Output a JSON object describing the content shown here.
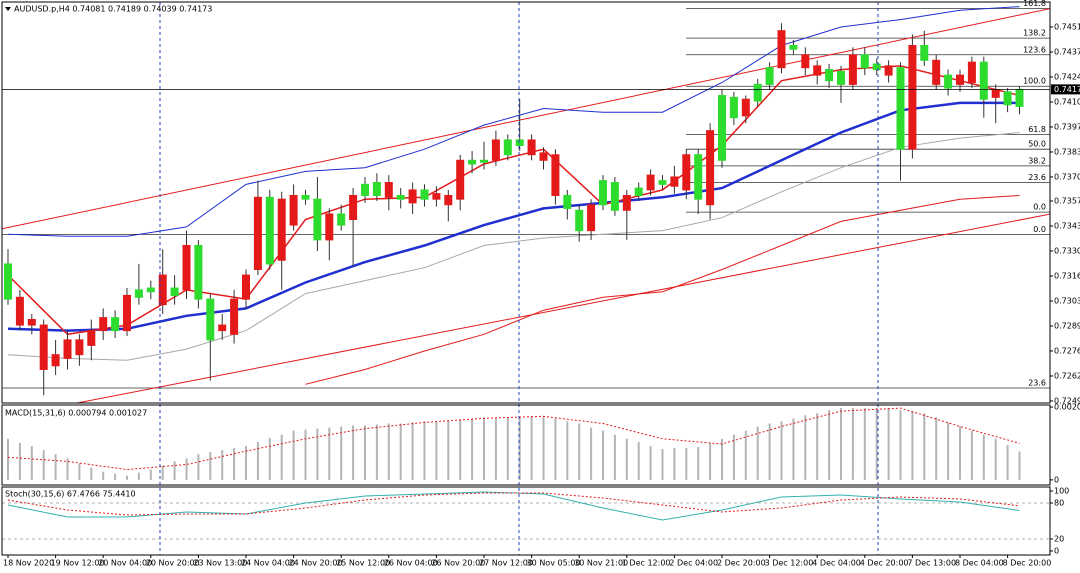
{
  "chart_data": [
    {
      "type": "candlestick",
      "title": "AUDUSD.p,H4  0.74081 0.74189 0.74039 0.74173",
      "categories": [
        "18 Nov 2020",
        null,
        null,
        null,
        "19 Nov 12:00",
        null,
        null,
        null,
        "20 Nov 04:00",
        null,
        null,
        null,
        "20 Nov 20:00",
        null,
        null,
        null,
        "23 Nov 13:00",
        null,
        null,
        null,
        "24 Nov 04:00",
        null,
        null,
        null,
        "24 Nov 20:00",
        null,
        null,
        null,
        "25 Nov 12:00",
        null,
        null,
        null,
        "26 Nov 04:00",
        null,
        null,
        null,
        "26 Nov 20:00",
        null,
        null,
        null,
        "27 Nov 12:00",
        null,
        null,
        null,
        "30 Nov 05:00",
        null,
        null,
        null,
        "30 Nov 21:00",
        null,
        null,
        null,
        "1 Dec 12:00",
        null,
        null,
        null,
        "2 Dec 04:00",
        null,
        null,
        null,
        "2 Dec 20:00",
        null,
        null,
        null,
        "3 Dec 12:00",
        null,
        null,
        null,
        "4 Dec 04:00",
        null,
        null,
        null,
        "4 Dec 20:00",
        null,
        null,
        null,
        "7 Dec 13:00",
        null,
        null,
        null,
        "8 Dec 04:00",
        null,
        null,
        null,
        "8 Dec 20:00",
        null
      ],
      "open": [
        0.7304,
        0.7305,
        0.7293,
        0.729,
        0.7274,
        0.7282,
        0.7282,
        0.7287,
        0.7294,
        0.7287,
        0.7306,
        0.7305,
        0.7308,
        0.7317,
        0.7306,
        0.7333,
        0.7304,
        0.7282,
        0.729,
        0.7304,
        0.7317,
        0.7359,
        0.7323,
        0.7358,
        0.736,
        0.7358,
        0.7336,
        0.735,
        0.7344,
        0.736,
        0.736,
        0.736,
        0.7367,
        0.7358,
        0.7363,
        0.7358,
        0.7361,
        0.736,
        0.7379,
        0.7377,
        0.7378,
        0.739,
        0.7382,
        0.7387,
        0.739,
        0.7383,
        0.7382,
        0.7353,
        0.7341,
        0.7355,
        0.7355,
        0.7352,
        0.736,
        0.736,
        0.7371,
        0.7366,
        0.737,
        0.7382,
        0.7358,
        0.7395,
        0.7379,
        0.7402,
        0.7412,
        0.7411,
        0.742,
        0.7449,
        0.7439,
        0.7436,
        0.743,
        0.7422,
        0.742,
        0.7436,
        0.7429,
        0.7428,
        0.743,
        0.7385,
        0.7441,
        0.7433,
        0.7433,
        0.7418,
        0.7425,
        0.7432,
        0.7412,
        0.7417,
        0.7409,
        0.74081
      ],
      "high": [
        0.7331,
        0.7309,
        0.7296,
        0.7293,
        0.7282,
        0.7287,
        0.7285,
        0.7293,
        0.7299,
        0.7298,
        0.731,
        0.7323,
        0.7314,
        0.7331,
        0.7317,
        0.7341,
        0.7336,
        0.7307,
        0.7296,
        0.7309,
        0.732,
        0.7368,
        0.7363,
        0.7362,
        0.7366,
        0.7363,
        0.737,
        0.7353,
        0.7355,
        0.7364,
        0.737,
        0.7372,
        0.7371,
        0.7364,
        0.7367,
        0.7366,
        0.7365,
        0.7363,
        0.7382,
        0.7384,
        0.7389,
        0.7395,
        0.7393,
        0.7412,
        0.7393,
        0.7386,
        0.7385,
        0.7363,
        0.7355,
        0.7358,
        0.7371,
        0.737,
        0.7363,
        0.7367,
        0.7374,
        0.7371,
        0.7376,
        0.7385,
        0.7385,
        0.7399,
        0.7417,
        0.7416,
        0.7414,
        0.7423,
        0.7432,
        0.7453,
        0.7444,
        0.744,
        0.7433,
        0.7431,
        0.743,
        0.744,
        0.744,
        0.7434,
        0.7433,
        0.7432,
        0.7447,
        0.7449,
        0.7436,
        0.7428,
        0.7428,
        0.7435,
        0.7435,
        0.742,
        0.7418,
        0.74189
      ],
      "low": [
        0.7301,
        0.7287,
        0.7285,
        0.7252,
        0.7263,
        0.7266,
        0.7268,
        0.7271,
        0.7282,
        0.7283,
        0.7284,
        0.7301,
        0.7304,
        0.7296,
        0.7301,
        0.7304,
        0.7299,
        0.726,
        0.7282,
        0.728,
        0.7299,
        0.7317,
        0.732,
        0.7309,
        0.7341,
        0.7355,
        0.733,
        0.7325,
        0.7341,
        0.7322,
        0.7356,
        0.7357,
        0.7352,
        0.7353,
        0.735,
        0.7354,
        0.7354,
        0.7346,
        0.7352,
        0.7372,
        0.7374,
        0.7376,
        0.7379,
        0.7384,
        0.7379,
        0.7374,
        0.7355,
        0.7347,
        0.7335,
        0.7336,
        0.7352,
        0.7349,
        0.7336,
        0.7357,
        0.736,
        0.7363,
        0.7361,
        0.7358,
        0.735,
        0.7347,
        0.7375,
        0.7398,
        0.7399,
        0.7408,
        0.7417,
        0.7426,
        0.7436,
        0.7425,
        0.742,
        0.7418,
        0.741,
        0.7417,
        0.7425,
        0.7425,
        0.7421,
        0.7368,
        0.738,
        0.743,
        0.7417,
        0.7414,
        0.7416,
        0.7418,
        0.7402,
        0.7399,
        0.7405,
        0.74039
      ],
      "close": [
        0.7323,
        0.729,
        0.729,
        0.7266,
        0.7268,
        0.7272,
        0.7274,
        0.7279,
        0.7287,
        0.7294,
        0.7287,
        0.7309,
        0.731,
        0.7301,
        0.731,
        0.7309,
        0.7333,
        0.7304,
        0.7287,
        0.7285,
        0.7304,
        0.732,
        0.7359,
        0.7325,
        0.7344,
        0.736,
        0.7358,
        0.7336,
        0.735,
        0.7347,
        0.7366,
        0.7367,
        0.7359,
        0.736,
        0.7356,
        0.7363,
        0.7358,
        0.7355,
        0.7358,
        0.7379,
        0.7379,
        0.7379,
        0.739,
        0.739,
        0.7382,
        0.7379,
        0.736,
        0.736,
        0.7352,
        0.7341,
        0.7368,
        0.7367,
        0.7352,
        0.7364,
        0.7363,
        0.7368,
        0.7365,
        0.7363,
        0.7382,
        0.7355,
        0.7414,
        0.7413,
        0.7403,
        0.742,
        0.7429,
        0.7429,
        0.7441,
        0.7429,
        0.7425,
        0.7428,
        0.7427,
        0.742,
        0.7436,
        0.7431,
        0.7425,
        0.7429,
        0.7385,
        0.7441,
        0.742,
        0.7425,
        0.742,
        0.7421,
        0.7432,
        0.7413,
        0.7416,
        0.74173
      ],
      "up_color": "#2ddc2d",
      "down_color": "#e41a1a",
      "ylim": [
        0.72479,
        0.74645
      ],
      "yticks": [
        {
          "value": 0.7451,
          "label": "0.74510"
        },
        0.74375,
        {
          "value": 0.7424,
          "label": "0.74240"
        },
        0.74105,
        {
          "value": 0.7397,
          "label": "0.73970"
        },
        0.73835,
        {
          "value": 0.737,
          "label": "0.73700"
        },
        {
          "value": 0.7357,
          "label": "0.73570"
        },
        0.73435,
        {
          "value": 0.733,
          "label": "0.73300"
        },
        0.73165,
        {
          "value": 0.7303,
          "label": "0.73030"
        },
        0.72895,
        {
          "value": 0.7276,
          "label": "0.72760"
        },
        0.72625,
        {
          "value": 0.7249,
          "label": "0.72490"
        }
      ],
      "last_price": {
        "value": 0.74173,
        "label": "0.74173"
      },
      "lines_x": [
        0,
        5,
        10,
        15,
        20,
        25,
        30,
        35,
        40,
        45,
        50,
        55,
        60,
        65,
        70,
        75,
        80,
        85
      ],
      "lines": [
        {
          "color": "#a8a8a8",
          "width": 1,
          "values": [
            0.7274,
            0.7272,
            0.7271,
            0.7277,
            0.7287,
            0.7307,
            0.7314,
            0.7321,
            0.7333,
            0.7337,
            0.7339,
            0.7341,
            0.7348,
            0.7362,
            0.7375,
            0.7386,
            0.7391,
            0.7394
          ]
        },
        {
          "color": "#1f2fd0",
          "width": 1,
          "values": [
            0.7339,
            0.7338,
            0.7338,
            0.7343,
            0.7366,
            0.7373,
            0.7375,
            0.7385,
            0.7398,
            0.7407,
            0.7405,
            0.7405,
            0.7421,
            0.7441,
            0.7451,
            0.7455,
            0.746,
            0.7462
          ]
        },
        {
          "color": "#e41a1a",
          "width": 1,
          "values": [
            null,
            null,
            null,
            null,
            null,
            0.7258,
            0.7266,
            0.7276,
            0.7285,
            0.7298,
            0.7305,
            0.7308,
            0.732,
            0.7333,
            0.7346,
            0.7352,
            0.7358,
            0.736
          ]
        },
        {
          "color": "#1f2fd0",
          "width": 2.5,
          "values": [
            0.7288,
            0.7287,
            0.7288,
            0.7295,
            0.7299,
            0.7313,
            0.7324,
            0.7333,
            0.7344,
            0.7353,
            0.7356,
            0.7359,
            0.7364,
            0.7379,
            0.7394,
            0.7406,
            0.741,
            0.741
          ]
        },
        {
          "color": "#e41a1a",
          "width": 1.5,
          "values": [
            0.7317,
            0.7285,
            0.729,
            0.7309,
            0.7304,
            0.7347,
            0.7358,
            0.7359,
            0.7377,
            0.7385,
            0.7355,
            0.7363,
            0.7387,
            0.7422,
            0.7428,
            0.743,
            0.7422,
            0.7414
          ]
        }
      ],
      "trendlines": [
        {
          "color": "#e41a1a",
          "x": [
            -0.5,
            87.6
          ],
          "values": [
            0.7342,
            0.7461
          ]
        },
        {
          "color": "#e41a1a",
          "x": [
            -0.5,
            87.6
          ],
          "values": [
            0.724,
            0.735
          ]
        }
      ],
      "fib_levels": [
        {
          "label": "161.8",
          "value": 0.7461,
          "span": "partial"
        },
        {
          "label": "138.2",
          "value": 0.7445,
          "span": "partial"
        },
        {
          "label": "123.6",
          "value": 0.7436,
          "span": "partial"
        },
        {
          "label": "100.0",
          "value": 0.7419,
          "span": "partial"
        },
        {
          "label": "61.8",
          "value": 0.7393,
          "span": "partial"
        },
        {
          "label": "50.0",
          "value": 0.7385,
          "span": "partial"
        },
        {
          "label": "38.2",
          "value": 0.7376,
          "span": "partial"
        },
        {
          "label": "23.6",
          "value": 0.7367,
          "span": "partial"
        },
        {
          "label": "0.0",
          "value": 0.7351,
          "span": "partial"
        },
        {
          "label": "0.0",
          "value": 0.7339,
          "span": "full"
        },
        {
          "label": "23.6",
          "value": 0.7256,
          "span": "full"
        }
      ]
    },
    {
      "type": "macd",
      "title": "MACD(15,31,6) 0.000794 0.001027",
      "histogram": [
        0.001151,
        0.001036,
        0.000949,
        0.000834,
        0.000719,
        0.000604,
        0.00046,
        0.000345,
        0.00023,
        0.000173,
        0.000115,
        0.000201,
        0.000288,
        0.000403,
        0.000518,
        0.000604,
        0.000719,
        0.000777,
        0.000834,
        0.000892,
        0.000949,
        0.001064,
        0.00118,
        0.001266,
        0.001381,
        0.00141,
        0.001439,
        0.001467,
        0.001496,
        0.001525,
        0.001525,
        0.001554,
        0.001582,
        0.001582,
        0.001611,
        0.00164,
        0.00164,
        0.001669,
        0.001697,
        0.001697,
        0.001726,
        0.001726,
        0.001755,
        0.001755,
        0.001784,
        0.001784,
        0.001726,
        0.00164,
        0.001582,
        0.001467,
        0.001381,
        0.001266,
        0.001151,
        0.001064,
        0.000949,
        0.000863,
        0.000892,
        0.000892,
        0.000921,
        0.001036,
        0.001151,
        0.001266,
        0.001381,
        0.001496,
        0.001582,
        0.00164,
        0.001726,
        0.001813,
        0.00187,
        0.001956,
        0.002014,
        0.002014,
        0.002014,
        0.002014,
        0.002014,
        0.001956,
        0.001928,
        0.00187,
        0.001755,
        0.001611,
        0.001496,
        0.001381,
        0.001266,
        0.001151,
        0.000978,
        0.000794
      ],
      "histogram_color": "#b4b4b4",
      "signal_x": [
        0,
        5,
        10,
        15,
        20,
        25,
        30,
        35,
        40,
        45,
        50,
        55,
        60,
        65,
        70,
        75,
        80,
        85
      ],
      "signal": [
        0.000633,
        0.000518,
        0.000288,
        0.000432,
        0.000806,
        0.001151,
        0.001439,
        0.001611,
        0.001726,
        0.001784,
        0.001582,
        0.001151,
        0.001007,
        0.001496,
        0.001928,
        0.002014,
        0.001496,
        0.001027
      ],
      "signal_color": "#e41a1a",
      "ylim": [
        -0.000144,
        0.0021
      ],
      "yticks": [
        0.002043,
        0
      ]
    },
    {
      "type": "stochastic",
      "title": "Stoch(30,15,6) 67.4766 75.4410",
      "x": [
        0,
        5,
        10,
        15,
        20,
        25,
        30,
        35,
        40,
        45,
        50,
        55,
        60,
        65,
        70,
        75,
        80,
        85
      ],
      "main": [
        76.7,
        56.7,
        56.7,
        65,
        61.7,
        80,
        91.7,
        95,
        98.3,
        95,
        71.7,
        51.7,
        68.3,
        90,
        93.3,
        86.7,
        81.7,
        67.5
      ],
      "main_color": "#36b0b0",
      "signal": [
        85,
        68.3,
        60,
        61.7,
        61.7,
        71.7,
        85,
        93.3,
        96.7,
        96.7,
        88.3,
        76.7,
        65,
        71.7,
        85,
        90,
        86.7,
        75.4
      ],
      "signal_color": "#e41a1a",
      "ylim": [
        -6.7,
        106.7
      ],
      "yticks": [
        100,
        80,
        20,
        0
      ],
      "levels": [
        80,
        20
      ]
    }
  ]
}
